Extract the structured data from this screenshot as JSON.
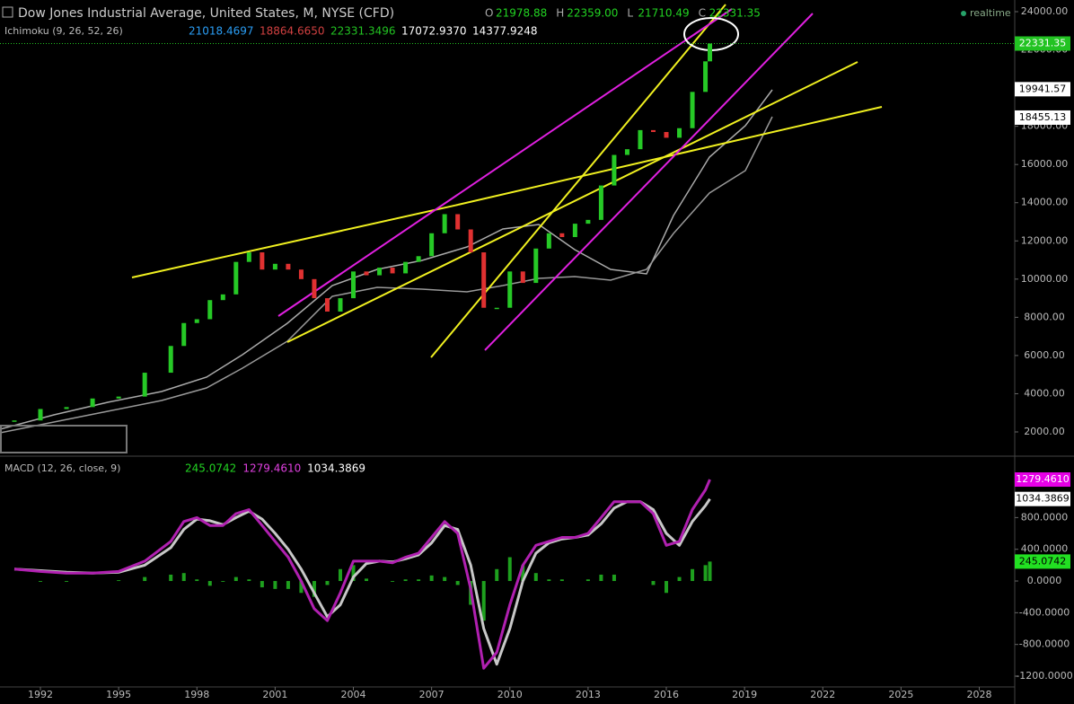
{
  "header": {
    "title": "Dow Jones Industrial Average, United States, M, NYSE (CFD)",
    "ohlc": [
      {
        "label": "O",
        "value": "21978.88"
      },
      {
        "label": "H",
        "value": "22359.00"
      },
      {
        "label": "L",
        "value": "21710.49"
      },
      {
        "label": "C",
        "value": "22331.35"
      }
    ],
    "status": "realtime",
    "ichimoku": {
      "name": "Ichimoku (9, 26, 52, 26)",
      "values": [
        {
          "text": "21018.4697",
          "color": "#2a9df4"
        },
        {
          "text": "18864.6650",
          "color": "#d04040"
        },
        {
          "text": "22331.3496",
          "color": "#22c322"
        },
        {
          "text": "17072.9370",
          "color": "#ffffff"
        },
        {
          "text": "14377.9248",
          "color": "#ffffff"
        }
      ]
    },
    "macd": {
      "name": "MACD (12, 26, close, 9)",
      "values": [
        {
          "text": "245.0742",
          "color": "#22d322"
        },
        {
          "text": "1279.4610",
          "color": "#e040e0"
        },
        {
          "text": "1034.3869",
          "color": "#ffffff"
        }
      ]
    }
  },
  "chart_data": [
    {
      "type": "candlestick",
      "x": [
        1991,
        1992,
        1993,
        1994,
        1995,
        1996,
        1997,
        1997.5,
        1998,
        1998.5,
        1999,
        1999.5,
        2000,
        2000.5,
        2001,
        2001.5,
        2002,
        2002.5,
        2003,
        2003.5,
        2004,
        2004.5,
        2005,
        2005.5,
        2006,
        2006.5,
        2007,
        2007.5,
        2008,
        2008.5,
        2009,
        2009.5,
        2010,
        2010.5,
        2011,
        2011.5,
        2012,
        2012.5,
        2013,
        2013.5,
        2014,
        2014.5,
        2015,
        2015.5,
        2016,
        2016.5,
        2017,
        2017.5,
        2017.67
      ],
      "values": [
        2600,
        3200,
        3300,
        3750,
        3850,
        5100,
        6500,
        7700,
        7900,
        8900,
        9200,
        10900,
        11400,
        10500,
        10800,
        10500,
        10000,
        9000,
        8300,
        9000,
        10400,
        10200,
        10600,
        10300,
        10900,
        11200,
        12400,
        13400,
        12600,
        11400,
        8500,
        8500,
        10400,
        9800,
        11600,
        12400,
        12200,
        12900,
        13100,
        14900,
        16500,
        16800,
        17800,
        17700,
        17400,
        17900,
        19800,
        21400,
        22331.35
      ],
      "up_color": "#26c926",
      "down_color": "#e03131",
      "xlim": [
        1990.45,
        2029.36
      ],
      "xticks": [
        1992,
        1995,
        1998,
        2001,
        2004,
        2007,
        2010,
        2013,
        2016,
        2019,
        2022,
        2025,
        2028
      ],
      "ylim": [
        872,
        24611
      ],
      "yticks": [
        {
          "value": 2000,
          "label": "2000.00"
        },
        {
          "value": 4000,
          "label": "4000.00"
        },
        {
          "value": 6000,
          "label": "6000.00"
        },
        {
          "value": 8000,
          "label": "8000.00"
        },
        {
          "value": 10000,
          "label": "10000.00"
        },
        {
          "value": 12000,
          "label": "12000.00"
        },
        {
          "value": 14000,
          "label": "14000.00"
        },
        {
          "value": 16000,
          "label": "16000.00"
        },
        {
          "value": 18000,
          "label": "18000.00"
        },
        {
          "value": 20000,
          "label": "20000.00"
        },
        {
          "value": 22000,
          "label": "22000.00"
        },
        {
          "value": 24000,
          "label": "24000.00"
        }
      ],
      "price_labels": [
        {
          "value": 22331.35,
          "color": "#22c322"
        },
        {
          "value": 19941.57,
          "color": "#ffffff"
        },
        {
          "value": 18455.13,
          "color": "#ffffff"
        }
      ]
    },
    {
      "type": "macd",
      "x": [
        1991,
        1992,
        1993,
        1994,
        1995,
        1996,
        1997,
        1997.5,
        1998,
        1998.5,
        1999,
        1999.5,
        2000,
        2000.5,
        2001,
        2001.5,
        2002,
        2002.5,
        2003,
        2003.5,
        2004,
        2004.5,
        2005,
        2005.5,
        2006,
        2006.5,
        2007,
        2007.5,
        2008,
        2008.5,
        2009,
        2009.5,
        2010,
        2010.5,
        2011,
        2011.5,
        2012,
        2012.5,
        2013,
        2013.5,
        2014,
        2014.5,
        2015,
        2015.5,
        2016,
        2016.5,
        2017,
        2017.5,
        2017.67
      ],
      "xlim": [
        1990.45,
        2029.36
      ],
      "ylim": [
        -1336,
        1529
      ],
      "yticks": [
        {
          "value": -1200,
          "label": "-1200.0000"
        },
        {
          "value": -800,
          "label": "-800.0000"
        },
        {
          "value": -400,
          "label": "-400.0000"
        },
        {
          "value": 0,
          "label": "0.0000"
        },
        {
          "value": 400,
          "label": "400.0000"
        },
        {
          "value": 800,
          "label": "800.0000"
        }
      ],
      "series": [
        {
          "color": "#b020b0",
          "values": [
            150,
            120,
            100,
            100,
            120,
            250,
            500,
            750,
            800,
            700,
            700,
            850,
            900,
            700,
            500,
            300,
            0,
            -350,
            -500,
            -150,
            250,
            250,
            250,
            230,
            300,
            350,
            550,
            750,
            600,
            -100,
            -1100,
            -900,
            -300,
            200,
            450,
            500,
            550,
            550,
            600,
            800,
            1000,
            1000,
            1000,
            850,
            450,
            500,
            900,
            1150,
            1279.461
          ]
        },
        {
          "color": "#c8c8c8",
          "values": [
            150,
            130,
            110,
            100,
            110,
            200,
            420,
            650,
            780,
            760,
            710,
            800,
            880,
            780,
            600,
            400,
            150,
            -150,
            -450,
            -300,
            50,
            220,
            250,
            240,
            280,
            330,
            480,
            700,
            650,
            200,
            -600,
            -1050,
            -600,
            0,
            350,
            480,
            530,
            550,
            580,
            720,
            920,
            1000,
            1000,
            900,
            600,
            450,
            750,
            950,
            1034.3869
          ]
        },
        {
          "color": "#1ea01e",
          "values": [
            0,
            -10,
            -10,
            0,
            10,
            50,
            80,
            100,
            20,
            -60,
            -10,
            50,
            20,
            -80,
            -100,
            -100,
            -150,
            -200,
            -50,
            150,
            200,
            30,
            0,
            -10,
            20,
            20,
            70,
            50,
            -50,
            -300,
            -500,
            150,
            300,
            200,
            100,
            20,
            20,
            0,
            20,
            80,
            80,
            0,
            0,
            -50,
            -150,
            50,
            150,
            200,
            245.0742
          ]
        }
      ],
      "last_labels": [
        {
          "value": 1279.461,
          "label": "1279.4610",
          "color": "#e600e6",
          "text_color": "#ffffff"
        },
        {
          "value": 1034.3869,
          "label": "1034.3869",
          "color": "#ffffff",
          "text_color": "#000000"
        },
        {
          "value": 245.0742,
          "label": "245.0742",
          "color": "#22e022",
          "text_color": "#000000"
        }
      ]
    }
  ]
}
